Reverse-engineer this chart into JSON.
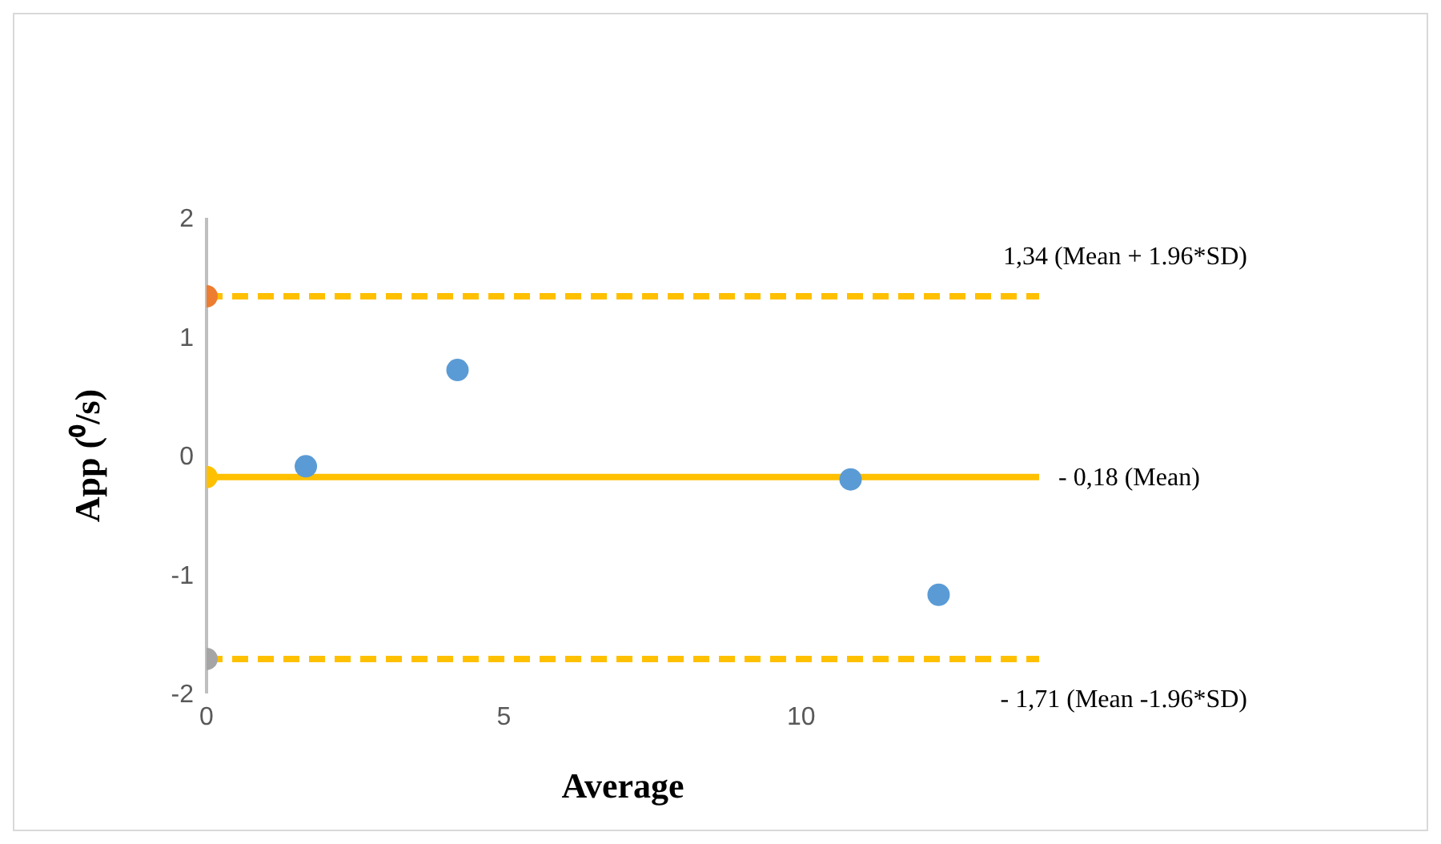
{
  "chart_data": {
    "type": "scatter",
    "xlabel": "Average",
    "ylabel": "App (⁰/s)",
    "xlim": [
      0,
      14
    ],
    "ylim": [
      -2,
      2
    ],
    "xticks": [
      0,
      5,
      10
    ],
    "yticks": [
      -2,
      -1,
      0,
      1,
      2
    ],
    "grid": false,
    "legend": false,
    "marker": "circle",
    "series": [
      {
        "color": "#5b9bd5",
        "x": [
          1.67,
          4.22,
          10.83,
          12.31
        ],
        "values": [
          -0.09,
          0.72,
          -0.2,
          -1.17
        ]
      },
      {
        "color": "#ed7d31",
        "x": [
          0
        ],
        "values": [
          1.34
        ]
      },
      {
        "color": "#ffc000",
        "x": [
          0
        ],
        "values": [
          -0.18
        ]
      },
      {
        "color": "#a5a5a5",
        "x": [
          0
        ],
        "values": [
          -1.71
        ]
      }
    ],
    "ref_lines": [
      {
        "axis": "y",
        "value": 1.34,
        "label": "1,34 (Mean + 1.96*SD)",
        "color": "#ffc000",
        "line_style": "dashed"
      },
      {
        "axis": "y",
        "value": -0.18,
        "label": "- 0,18 (Mean)",
        "color": "#ffc000",
        "line_style": "solid"
      },
      {
        "axis": "y",
        "value": -1.71,
        "label": "- 1,71 (Mean -1.96*SD)",
        "color": "#ffc000",
        "line_style": "dashed"
      }
    ]
  }
}
